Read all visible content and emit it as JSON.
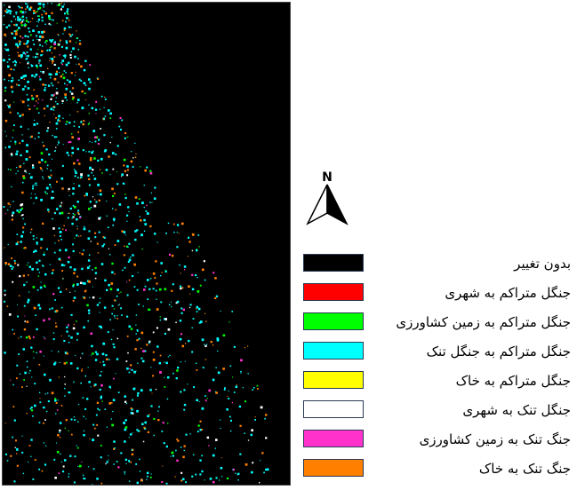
{
  "north_arrow": {
    "label": "N"
  },
  "map": {
    "background": "#000000",
    "classes_present": [
      "#00ffff",
      "#ff8000",
      "#00ff00",
      "#ff33cc",
      "#ffffff"
    ]
  },
  "legend": {
    "items": [
      {
        "label": "بدون تغییر",
        "color": "#000000"
      },
      {
        "label": "جنگل متراکم به شهری",
        "color": "#ff0000"
      },
      {
        "label": "جنگل متراکم به زمین کشاورزی",
        "color": "#00ff00"
      },
      {
        "label": "جنگل متراکم به جنگل تنک",
        "color": "#00ffff"
      },
      {
        "label": "جنگل متراکم به خاک",
        "color": "#ffff00"
      },
      {
        "label": "جنگل تنک به شهری",
        "color": "#ffffff"
      },
      {
        "label": "جنگ تنک به زمین کشاورزی",
        "color": "#ff33cc"
      },
      {
        "label": "جنگ تنک به خاک",
        "color": "#ff8000"
      }
    ]
  }
}
